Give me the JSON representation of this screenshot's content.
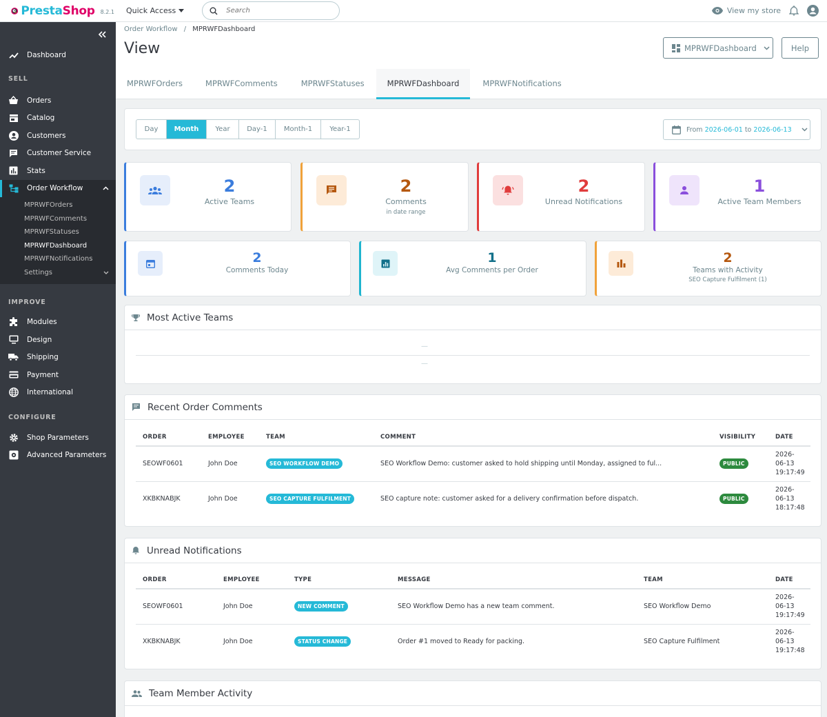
{
  "brand": {
    "name_a": "Presta",
    "name_b": "Shop",
    "version": "8.2.1"
  },
  "topbar": {
    "quick_access": "Quick Access",
    "search_placeholder": "Search",
    "view_store": "View my store"
  },
  "sidebar": {
    "dashboard": "Dashboard",
    "sell_header": "SELL",
    "sell": [
      {
        "label": "Orders",
        "icon": "basket-icon"
      },
      {
        "label": "Catalog",
        "icon": "store-icon"
      },
      {
        "label": "Customers",
        "icon": "account-circle-icon"
      },
      {
        "label": "Customer Service",
        "icon": "chat-icon"
      },
      {
        "label": "Stats",
        "icon": "bar-chart-icon"
      },
      {
        "label": "Order Workflow",
        "icon": "workflow-icon"
      }
    ],
    "sub": [
      "MPRWFOrders",
      "MPRWFComments",
      "MPRWFStatuses",
      "MPRWFDashboard",
      "MPRWFNotifications",
      "Settings"
    ],
    "improve_header": "IMPROVE",
    "improve": [
      "Modules",
      "Design",
      "Shipping",
      "Payment",
      "International"
    ],
    "configure_header": "CONFIGURE",
    "configure": [
      "Shop Parameters",
      "Advanced Parameters"
    ]
  },
  "header": {
    "breadcrumb_parent": "Order Workflow",
    "breadcrumb_current": "MPRWFDashboard",
    "title": "View",
    "dashboard_button": "MPRWFDashboard",
    "help_button": "Help",
    "tabs": [
      "MPRWFOrders",
      "MPRWFComments",
      "MPRWFStatuses",
      "MPRWFDashboard",
      "MPRWFNotifications"
    ],
    "active_tab": "MPRWFDashboard"
  },
  "period": {
    "buttons": [
      "Day",
      "Month",
      "Year",
      "Day-1",
      "Month-1",
      "Year-1"
    ],
    "active": "Month",
    "range_from_label": "From",
    "range_from": "2026-06-01",
    "range_to_label": "to",
    "range_to": "2026-06-13"
  },
  "kpis_top": [
    {
      "value": "2",
      "label": "Active Teams",
      "sub": "",
      "color": "#3b7ddd",
      "icon": "groups-icon"
    },
    {
      "value": "2",
      "label": "Comments",
      "sub": "in date range",
      "color": "#b5580f",
      "icon": "comment-icon"
    },
    {
      "value": "2",
      "label": "Unread Notifications",
      "sub": "",
      "color": "#e03c3c",
      "icon": "bell-ring-icon"
    },
    {
      "value": "1",
      "label": "Active Team Members",
      "sub": "",
      "color": "#8a4fdc",
      "icon": "person-icon"
    }
  ],
  "kpis_bottom": [
    {
      "value": "2",
      "label": "Comments Today",
      "sub": "",
      "color": "#3b7ddd",
      "icon": "calendar-icon"
    },
    {
      "value": "1",
      "label": "Avg Comments per Order",
      "sub": "",
      "color": "#12708a",
      "icon": "analytics-icon"
    },
    {
      "value": "2",
      "label": "Teams with Activity",
      "sub": "SEO Capture Fulfilment (1)",
      "color": "#b5580f",
      "icon": "bar-chart-icon"
    }
  ],
  "most_active": {
    "title": "Most Active Teams",
    "rows": [
      "—",
      "—"
    ]
  },
  "recent_comments": {
    "title": "Recent Order Comments",
    "columns": [
      "ORDER",
      "EMPLOYEE",
      "TEAM",
      "COMMENT",
      "VISIBILITY",
      "DATE"
    ],
    "rows": [
      {
        "order": "SEOWF0601",
        "employee": "John Doe",
        "team": "SEO WORKFLOW DEMO",
        "comment": "SEO Workflow Demo: customer asked to hold shipping until Monday, assigned to ful...",
        "visibility": "PUBLIC",
        "date_a": "2026-",
        "date_b": "06-13",
        "date_c": "19:17:49"
      },
      {
        "order": "XKBKNABJK",
        "employee": "John Doe",
        "team": "SEO CAPTURE FULFILMENT",
        "comment": "SEO capture note: customer asked for a delivery confirmation before dispatch.",
        "visibility": "PUBLIC",
        "date_a": "2026-",
        "date_b": "06-13",
        "date_c": "18:17:48"
      }
    ]
  },
  "unread": {
    "title": "Unread Notifications",
    "columns": [
      "ORDER",
      "EMPLOYEE",
      "TYPE",
      "MESSAGE",
      "TEAM",
      "DATE"
    ],
    "rows": [
      {
        "order": "SEOWF0601",
        "employee": "John Doe",
        "type": "NEW COMMENT",
        "message": "SEO Workflow Demo has a new team comment.",
        "team": "SEO Workflow Demo",
        "date_a": "2026-",
        "date_b": "06-13",
        "date_c": "19:17:49"
      },
      {
        "order": "XKBKNABJK",
        "employee": "John Doe",
        "type": "STATUS CHANGE",
        "message": "Order #1 moved to Ready for packing.",
        "team": "SEO Capture Fulfilment",
        "date_a": "2026-",
        "date_b": "06-13",
        "date_c": "19:17:48"
      }
    ]
  },
  "team_activity": {
    "title": "Team Member Activity"
  }
}
